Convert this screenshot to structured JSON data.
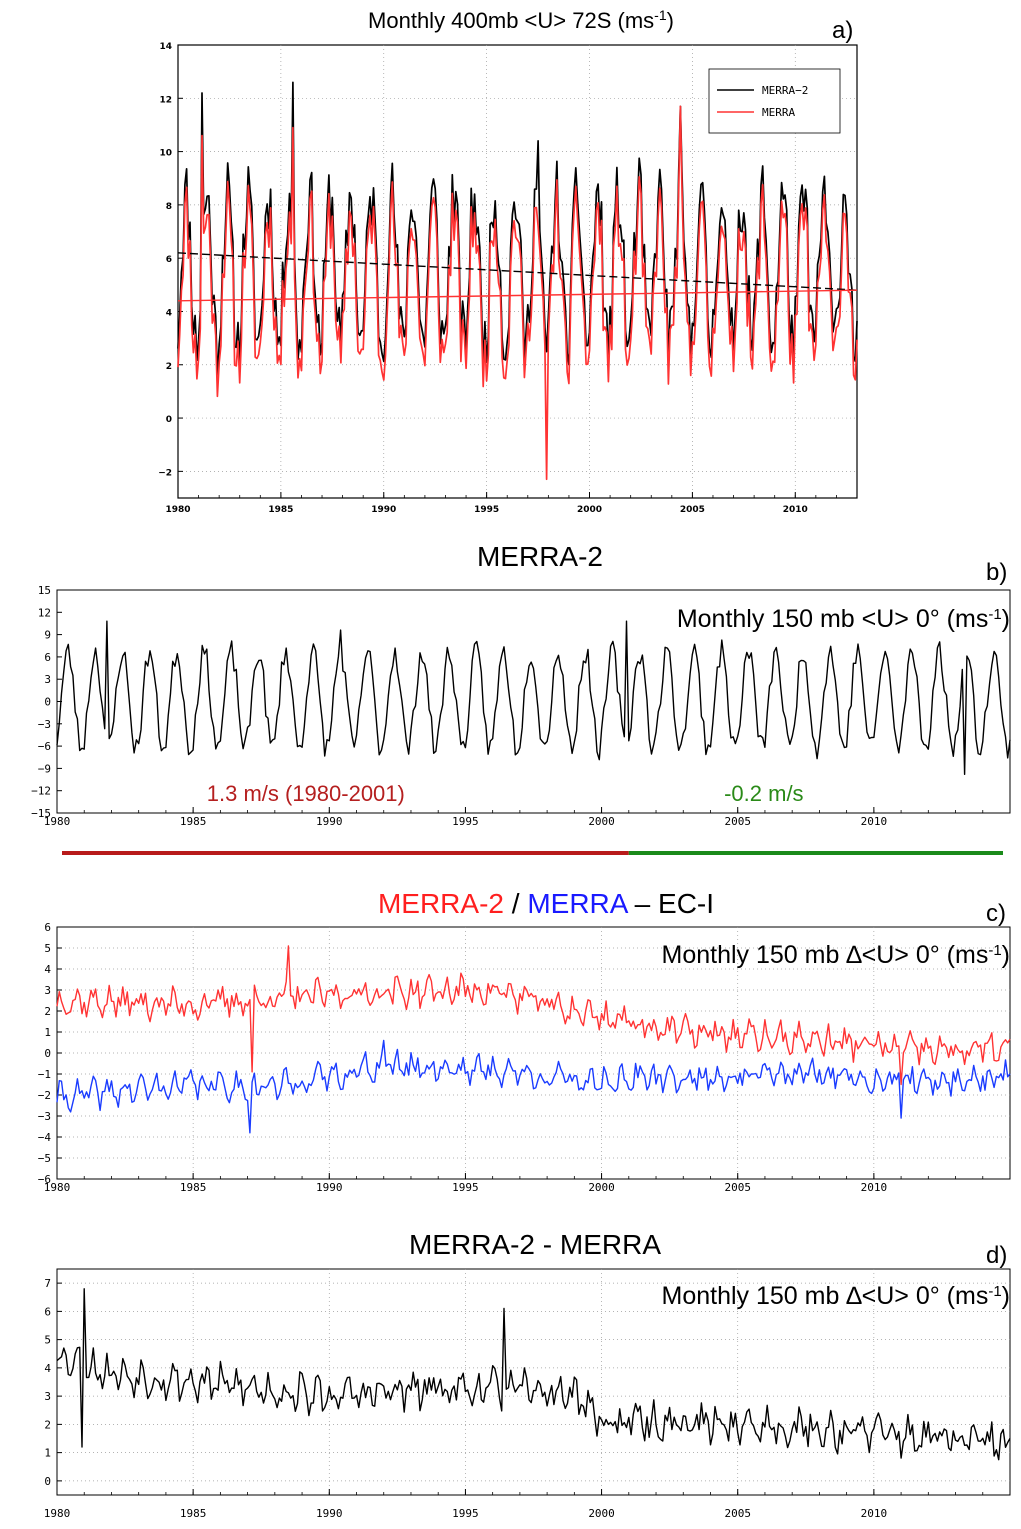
{
  "chart_data": [
    {
      "panel": "a)",
      "type": "line",
      "title": "Monthly 400mb <U> 72S (ms",
      "title_sup": "-1",
      "title_end": ")",
      "xlim": [
        1980,
        2013
      ],
      "ylim": [
        -3,
        14
      ],
      "xticks": [
        "1980",
        "1985",
        "1990",
        "1995",
        "2000",
        "2005",
        "2010"
      ],
      "yticks": [
        "−2",
        "0",
        "2",
        "4",
        "6",
        "8",
        "10",
        "12",
        "14"
      ],
      "grid": true,
      "legend": {
        "position": "top-right"
      },
      "series": [
        {
          "name": "MERRA−2",
          "color": "#000000",
          "mean": 5.6,
          "amplitude": 2.8,
          "noise": 1.4,
          "seed": 11,
          "peaks": [
            [
              1981.2,
              12.2
            ],
            [
              1985.6,
              12.6
            ],
            [
              1997.5,
              10.4
            ],
            [
              2004.4,
              11.7
            ]
          ]
        },
        {
          "name": "MERRA",
          "color": "#ff3333",
          "mean": 4.9,
          "amplitude": 2.8,
          "noise": 1.4,
          "seed": 11,
          "peaks": [
            [
              1981.2,
              10.6
            ],
            [
              1985.6,
              10.9
            ],
            [
              1997.9,
              -2.3
            ],
            [
              2004.4,
              11.7
            ]
          ]
        }
      ],
      "trends": [
        {
          "color": "#000000",
          "dashed": true,
          "from": [
            1980,
            6.2
          ],
          "to": [
            2013,
            4.8
          ]
        },
        {
          "color": "#ff3333",
          "dashed": false,
          "from": [
            1980,
            4.4
          ],
          "to": [
            2013,
            4.8
          ]
        }
      ]
    },
    {
      "panel": "b)",
      "type": "line",
      "title": "MERRA-2",
      "inner_title": "Monthly 150 mb <U> 0° (ms",
      "inner_sup": "-1",
      "inner_end": ")",
      "xlim": [
        1980,
        2015
      ],
      "ylim": [
        -15,
        15
      ],
      "xticks": [
        "1980",
        "1985",
        "1990",
        "1995",
        "2000",
        "2005",
        "2010"
      ],
      "yticks": [
        "−15",
        "−12",
        "−9",
        "−6",
        "−3",
        "0",
        "3",
        "6",
        "9",
        "12",
        "15"
      ],
      "grid": false,
      "series": [
        {
          "name": "MERRA-2",
          "color": "#000000",
          "mean": 0.2,
          "amplitude": 6.5,
          "noise": 1.6,
          "seed": 23,
          "peaks": [
            [
              1981.8,
              10.8
            ],
            [
              1990.4,
              9.6
            ],
            [
              2000.9,
              10.8
            ],
            [
              2013.3,
              -9.8
            ]
          ]
        }
      ],
      "annotations": [
        {
          "text": "1.3 m/s (1980-2001)",
          "color": "#b51f1f",
          "x": 1985.5,
          "y": -12.3
        },
        {
          "text": "-0.2 m/s",
          "color": "#2a8a18",
          "x": 2004.5,
          "y": -12.3
        }
      ],
      "period_bars": [
        {
          "from": 1980,
          "to": 2001,
          "color": "#b81a1a"
        },
        {
          "from": 2001,
          "to": 2015,
          "color": "#1a8a1a"
        }
      ]
    },
    {
      "panel": "c)",
      "type": "line",
      "title_parts": [
        {
          "text": "MERRA-2",
          "color": "#ff1f1f"
        },
        {
          "text": " / ",
          "color": "#000000"
        },
        {
          "text": "MERRA",
          "color": "#1a1aff"
        },
        {
          "text": " – EC-I",
          "color": "#000000"
        }
      ],
      "inner_title": "Monthly 150 mb ∆<U> 0° (ms",
      "inner_sup": "-1",
      "inner_end": ")",
      "xlim": [
        1980,
        2015
      ],
      "ylim": [
        -6,
        6
      ],
      "xticks": [
        "1980",
        "1985",
        "1990",
        "1995",
        "2000",
        "2005",
        "2010"
      ],
      "yticks": [
        "−6",
        "−5",
        "−4",
        "−3",
        "−2",
        "−1",
        "0",
        "1",
        "2",
        "3",
        "4",
        "5",
        "6"
      ],
      "grid": true,
      "series": [
        {
          "name": "MERRA-2",
          "color": "#ff3333",
          "seed": 37,
          "noise": 0.55,
          "profile": [
            [
              1980,
              2.5
            ],
            [
              1985,
              2.3
            ],
            [
              1988,
              2.6
            ],
            [
              1992,
              2.9
            ],
            [
              1996,
              3.0
            ],
            [
              1999,
              2.0
            ],
            [
              2003,
              1.0
            ],
            [
              2008,
              0.6
            ],
            [
              2012,
              0.1
            ],
            [
              2015,
              0.2
            ]
          ],
          "peaks": [
            [
              1988.5,
              5.1
            ],
            [
              1987.2,
              -0.9
            ],
            [
              2011.0,
              -1.5
            ]
          ]
        },
        {
          "name": "MERRA",
          "color": "#1a3cff",
          "seed": 41,
          "noise": 0.5,
          "profile": [
            [
              1980,
              -2.1
            ],
            [
              1985,
              -1.5
            ],
            [
              1988,
              -1.6
            ],
            [
              1992,
              -0.6
            ],
            [
              1996,
              -0.8
            ],
            [
              1999,
              -1.3
            ],
            [
              2003,
              -1.2
            ],
            [
              2008,
              -1.0
            ],
            [
              2012,
              -1.4
            ],
            [
              2015,
              -1.1
            ]
          ],
          "peaks": [
            [
              1992.0,
              0.6
            ],
            [
              1987.1,
              -3.8
            ],
            [
              2011.0,
              -3.1
            ]
          ]
        }
      ]
    },
    {
      "panel": "d)",
      "type": "line",
      "title": "MERRA-2 - MERRA",
      "inner_title": "Monthly 150 mb ∆<U> 0° (ms",
      "inner_sup": "-1",
      "inner_end": ")",
      "xlim": [
        1980,
        2015
      ],
      "ylim": [
        -0.5,
        7.5
      ],
      "xticks": [
        "1980",
        "1985",
        "1990",
        "1995",
        "2000",
        "2005",
        "2010"
      ],
      "yticks": [
        "0",
        "1",
        "2",
        "3",
        "4",
        "5",
        "6",
        "7"
      ],
      "grid": true,
      "series": [
        {
          "name": "MERRA-2 - MERRA",
          "color": "#000000",
          "seed": 53,
          "noise": 0.5,
          "profile": [
            [
              1980,
              4.5
            ],
            [
              1982,
              3.8
            ],
            [
              1985,
              3.5
            ],
            [
              1990,
              3.0
            ],
            [
              1995,
              3.3
            ],
            [
              1999,
              3.1
            ],
            [
              2000,
              2.1
            ],
            [
              2005,
              2.0
            ],
            [
              2010,
              1.7
            ],
            [
              2015,
              1.3
            ]
          ],
          "peaks": [
            [
              1981.0,
              6.8
            ],
            [
              1996.4,
              6.1
            ],
            [
              1980.9,
              1.2
            ]
          ]
        }
      ]
    }
  ]
}
